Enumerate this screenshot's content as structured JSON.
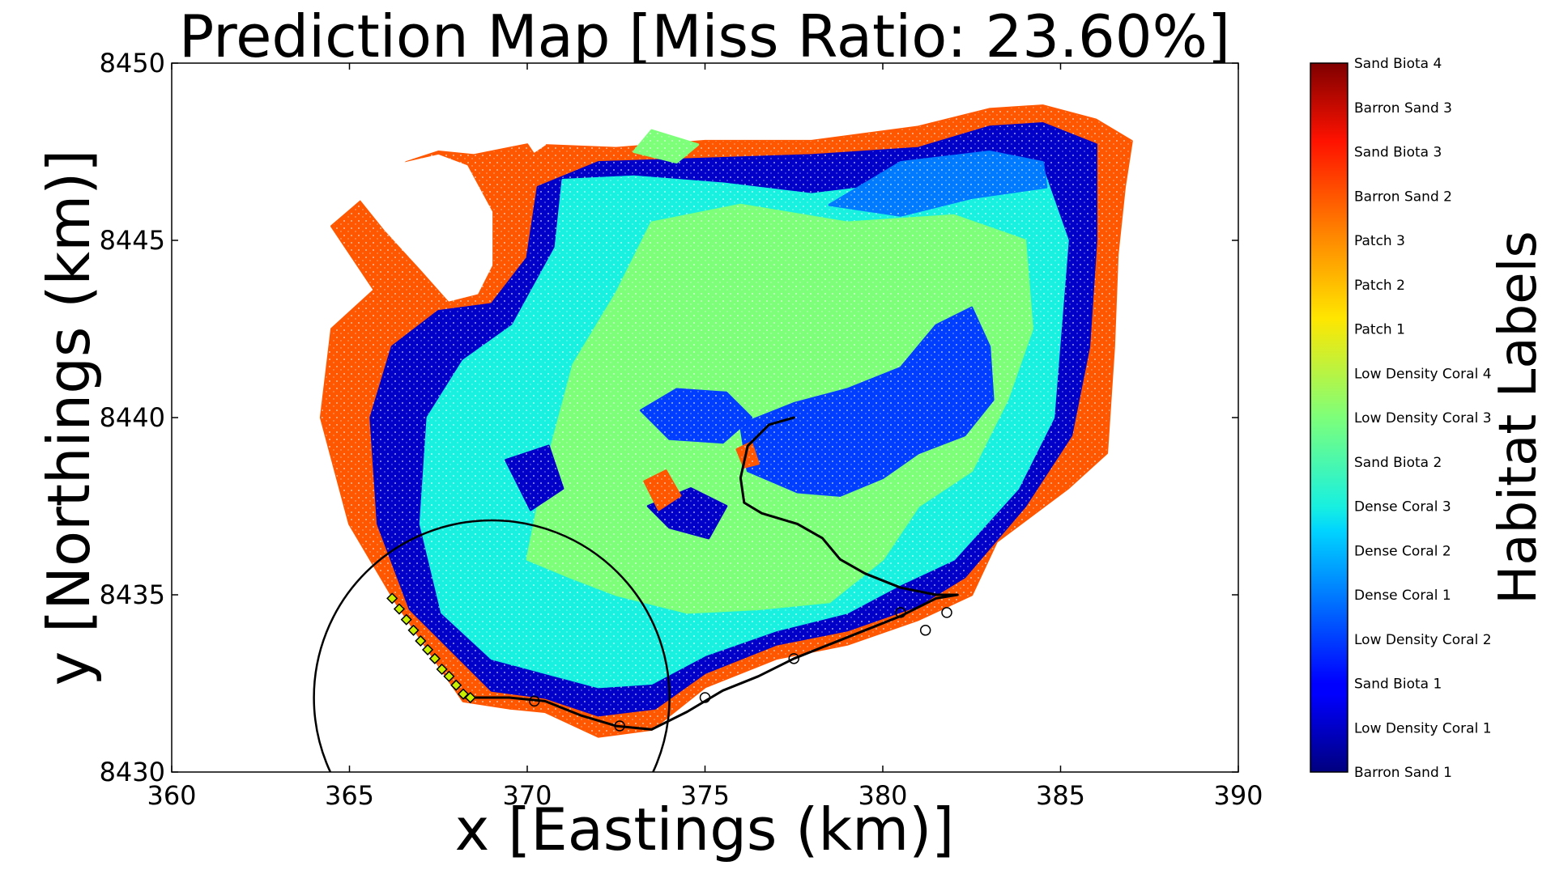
{
  "chart_data": {
    "type": "scatter",
    "title": "Prediction Map [Miss Ratio: 23.60%]",
    "xlabel": "x [Eastings (km)]",
    "ylabel": "y [Northings (km)]",
    "xlim": [
      360,
      390
    ],
    "ylim": [
      8430,
      8450
    ],
    "x_ticks": [
      "360",
      "365",
      "370",
      "375",
      "380",
      "385",
      "390"
    ],
    "y_ticks": [
      "8430",
      "8435",
      "8440",
      "8445",
      "8450"
    ],
    "grid": false,
    "colorbar": {
      "title": "Habitat Labels",
      "colormap": "jet",
      "labels": [
        "Barron Sand 1",
        "Low Density Coral 1",
        "Sand Biota 1",
        "Low Density Coral 2",
        "Dense Coral 1",
        "Dense Coral 2",
        "Dense Coral 3",
        "Sand Biota 2",
        "Low Density Coral 3",
        "Low Density Coral 4",
        "Patch 1",
        "Patch 2",
        "Patch 3",
        "Barron Sand 2",
        "Sand Biota 3",
        "Barron Sand 3",
        "Sand Biota 4"
      ]
    },
    "regions": [
      {
        "class": "Barron Sand 2",
        "polygon": [
          [
            366.3,
            8434.8
          ],
          [
            365,
            8437
          ],
          [
            364.2,
            8440
          ],
          [
            364.5,
            8442.5
          ],
          [
            365.7,
            8443.6
          ],
          [
            364.5,
            8445.4
          ],
          [
            365.2,
            8446
          ],
          [
            366.6,
            8447.2
          ],
          [
            367.5,
            8447.5
          ],
          [
            368.5,
            8447.4
          ],
          [
            370,
            8447.7
          ],
          [
            372.5,
            8447.6
          ],
          [
            375,
            8447.8
          ],
          [
            378,
            8447.8
          ],
          [
            381,
            8448.2
          ],
          [
            383,
            8448.7
          ],
          [
            384.5,
            8448.8
          ],
          [
            386,
            8448.4
          ],
          [
            387,
            8447.8
          ],
          [
            386.8,
            8446.5
          ],
          [
            386.6,
            8444.6
          ],
          [
            386.5,
            8442
          ],
          [
            386.3,
            8439
          ],
          [
            385.2,
            8438
          ],
          [
            383.2,
            8436.5
          ],
          [
            382.5,
            8435
          ],
          [
            381,
            8434.3
          ],
          [
            379,
            8433.6
          ],
          [
            377,
            8433.2
          ],
          [
            375,
            8432.4
          ],
          [
            373.5,
            8431.2
          ],
          [
            372,
            8431
          ],
          [
            370.5,
            8431.7
          ],
          [
            369.5,
            8431.8
          ],
          [
            368.2,
            8432
          ]
        ]
      },
      {
        "class": "Low Density Coral 1",
        "polygon": [
          [
            366.7,
            8434.6
          ],
          [
            365.8,
            8437
          ],
          [
            365.6,
            8440
          ],
          [
            366.2,
            8442
          ],
          [
            367.5,
            8443
          ],
          [
            369,
            8443.2
          ],
          [
            370,
            8444.5
          ],
          [
            370.3,
            8446.5
          ],
          [
            372,
            8447.2
          ],
          [
            375,
            8447.3
          ],
          [
            378,
            8447.4
          ],
          [
            381,
            8447.6
          ],
          [
            383,
            8448.2
          ],
          [
            384.5,
            8448.3
          ],
          [
            386,
            8447.7
          ],
          [
            386,
            8445
          ],
          [
            385.8,
            8442
          ],
          [
            385.3,
            8439.5
          ],
          [
            384,
            8437.5
          ],
          [
            382.3,
            8435.5
          ],
          [
            381,
            8434.7
          ],
          [
            379,
            8434
          ],
          [
            377,
            8433.6
          ],
          [
            375,
            8432.8
          ],
          [
            373.6,
            8431.8
          ],
          [
            372,
            8431.6
          ],
          [
            370.5,
            8432.1
          ],
          [
            369,
            8432.3
          ]
        ]
      },
      {
        "class": "Dense Coral 3",
        "polygon": [
          [
            367.6,
            8434.5
          ],
          [
            367,
            8437
          ],
          [
            367.2,
            8440
          ],
          [
            368.2,
            8441.6
          ],
          [
            369.6,
            8442.6
          ],
          [
            370.8,
            8444.8
          ],
          [
            371,
            8446.7
          ],
          [
            373,
            8446.8
          ],
          [
            375.5,
            8446.6
          ],
          [
            378,
            8446.3
          ],
          [
            380.5,
            8446.6
          ],
          [
            382.5,
            8447.3
          ],
          [
            384.5,
            8447
          ],
          [
            385.2,
            8445
          ],
          [
            385,
            8442.5
          ],
          [
            384.8,
            8440
          ],
          [
            383.8,
            8438
          ],
          [
            382,
            8436
          ],
          [
            380.5,
            8435.3
          ],
          [
            379,
            8434.5
          ],
          [
            377,
            8434
          ],
          [
            375,
            8433.3
          ],
          [
            373.5,
            8432.5
          ],
          [
            372,
            8432.4
          ],
          [
            370.5,
            8432.8
          ],
          [
            369,
            8433.2
          ]
        ]
      },
      {
        "class": "Low Density Coral 3",
        "polygon": [
          [
            370,
            8436
          ],
          [
            370.5,
            8438.5
          ],
          [
            371.3,
            8441.5
          ],
          [
            372.5,
            8443.5
          ],
          [
            373.5,
            8445.5
          ],
          [
            376,
            8446
          ],
          [
            379,
            8445.5
          ],
          [
            382,
            8445.7
          ],
          [
            384,
            8445
          ],
          [
            384.2,
            8442.5
          ],
          [
            383.5,
            8440.5
          ],
          [
            382.5,
            8438.5
          ],
          [
            381,
            8437.5
          ],
          [
            380,
            8436
          ],
          [
            378.5,
            8434.8
          ],
          [
            376.5,
            8434.6
          ],
          [
            374.5,
            8434.5
          ],
          [
            372.5,
            8435
          ],
          [
            371.2,
            8435.5
          ]
        ]
      },
      {
        "class": "Low Density Coral 2",
        "polygon": [
          [
            376,
            8439.8
          ],
          [
            377.5,
            8440.4
          ],
          [
            379,
            8440.8
          ],
          [
            380.5,
            8441.4
          ],
          [
            381.5,
            8442.6
          ],
          [
            382.5,
            8443.1
          ],
          [
            383,
            8442
          ],
          [
            383.1,
            8440.5
          ],
          [
            382.3,
            8439.5
          ],
          [
            381,
            8439
          ],
          [
            380,
            8438.3
          ],
          [
            378.8,
            8437.8
          ],
          [
            377.6,
            8437.9
          ],
          [
            376.2,
            8438.5
          ]
        ]
      },
      {
        "class": "Low Density Coral 2",
        "polygon": [
          [
            373.2,
            8440.2
          ],
          [
            374.2,
            8440.8
          ],
          [
            375.6,
            8440.7
          ],
          [
            376.3,
            8440
          ],
          [
            375.5,
            8439.3
          ],
          [
            374,
            8439.4
          ]
        ]
      },
      {
        "class": "Low Density Coral 1",
        "polygon": [
          [
            373.4,
            8437.5
          ],
          [
            374.6,
            8438
          ],
          [
            375.6,
            8437.5
          ],
          [
            375.1,
            8436.6
          ],
          [
            374,
            8436.9
          ]
        ]
      },
      {
        "class": "Low Density Coral 1",
        "polygon": [
          [
            369.4,
            8438.8
          ],
          [
            370.6,
            8439.2
          ],
          [
            371,
            8438
          ],
          [
            370.1,
            8437.4
          ]
        ]
      },
      {
        "class": "Dense Coral 1",
        "polygon": [
          [
            378.5,
            8446
          ],
          [
            380.5,
            8447.2
          ],
          [
            383,
            8447.5
          ],
          [
            384.5,
            8447.2
          ],
          [
            384.6,
            8446.5
          ],
          [
            382.5,
            8446.2
          ],
          [
            380.5,
            8445.7
          ]
        ]
      },
      {
        "class": "Barron Sand 2",
        "polygon": [
          [
            373.3,
            8438.2
          ],
          [
            373.9,
            8438.5
          ],
          [
            374.3,
            8437.8
          ],
          [
            373.7,
            8437.4
          ]
        ]
      },
      {
        "class": "Barron Sand 2",
        "polygon": [
          [
            375.9,
            8439.1
          ],
          [
            376.3,
            8439.3
          ],
          [
            376.5,
            8438.7
          ],
          [
            376.1,
            8438.6
          ]
        ]
      },
      {
        "class": "Low Density Coral 3",
        "polygon": [
          [
            373,
            8447.5
          ],
          [
            373.5,
            8448.1
          ],
          [
            374.8,
            8447.7
          ],
          [
            374.2,
            8447.2
          ]
        ]
      }
    ],
    "gaps": [
      {
        "polygon": [
          [
            365.2,
            8446.3
          ],
          [
            366.2,
            8447.1
          ],
          [
            367.5,
            8447.4
          ],
          [
            368.3,
            8447.1
          ],
          [
            369,
            8445.8
          ],
          [
            369,
            8444.3
          ],
          [
            368.6,
            8443.5
          ],
          [
            367.8,
            8443.3
          ],
          [
            367,
            8444.2
          ],
          [
            366,
            8445.3
          ]
        ]
      },
      {
        "polygon": [
          [
            370,
            8447.8
          ],
          [
            370.3,
            8448.1
          ],
          [
            370.5,
            8447.7
          ],
          [
            370.2,
            8447.5
          ]
        ]
      }
    ],
    "lines": [
      {
        "name": "path",
        "points": [
          [
            368.2,
            8432.1
          ],
          [
            369.5,
            8432.1
          ],
          [
            370.5,
            8432
          ],
          [
            371.5,
            8431.6
          ],
          [
            372.5,
            8431.3
          ],
          [
            373.5,
            8431.2
          ],
          [
            374.5,
            8431.7
          ],
          [
            375.5,
            8432.3
          ],
          [
            376.5,
            8432.7
          ],
          [
            377.5,
            8433.2
          ],
          [
            378.5,
            8433.6
          ],
          [
            379.5,
            8434
          ],
          [
            380.5,
            8434.4
          ],
          [
            381.5,
            8434.9
          ],
          [
            382.1,
            8435
          ]
        ]
      },
      {
        "name": "path",
        "points": [
          [
            377.5,
            8440
          ],
          [
            376.8,
            8439.8
          ],
          [
            376.2,
            8439.2
          ],
          [
            376,
            8438.3
          ],
          [
            376.1,
            8437.6
          ],
          [
            376.6,
            8437.3
          ],
          [
            377.6,
            8437
          ],
          [
            378.3,
            8436.6
          ],
          [
            378.8,
            8436
          ],
          [
            379.5,
            8435.6
          ],
          [
            380.5,
            8435.2
          ],
          [
            381.5,
            8435
          ],
          [
            382.1,
            8435
          ]
        ]
      }
    ],
    "circle": {
      "cx": 369,
      "cy": 8432.1,
      "r": 5
    },
    "markers": {
      "diamonds": [
        [
          366.2,
          8434.9
        ],
        [
          366.4,
          8434.6
        ],
        [
          366.6,
          8434.3
        ],
        [
          366.8,
          8434
        ],
        [
          367,
          8433.7
        ],
        [
          367.2,
          8433.45
        ],
        [
          367.4,
          8433.2
        ],
        [
          367.6,
          8432.9
        ],
        [
          367.8,
          8432.7
        ],
        [
          368,
          8432.45
        ],
        [
          368.2,
          8432.2
        ],
        [
          368.4,
          8432.1
        ]
      ],
      "open_circles": [
        [
          370.2,
          8432
        ],
        [
          372.6,
          8431.3
        ],
        [
          375,
          8432.1
        ],
        [
          377.5,
          8433.2
        ],
        [
          380.5,
          8434.5
        ],
        [
          381.2,
          8434
        ],
        [
          381.8,
          8434.5
        ]
      ]
    }
  }
}
